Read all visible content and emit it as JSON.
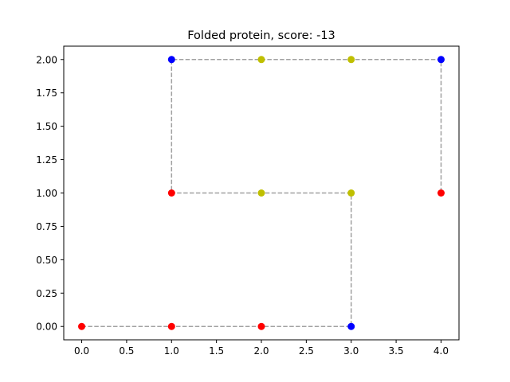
{
  "chart_data": {
    "type": "scatter",
    "title": "Folded protein, score: -13",
    "xlabel": "",
    "ylabel": "",
    "xlim": [
      -0.2,
      4.2
    ],
    "ylim": [
      -0.1,
      2.1
    ],
    "xticks": [
      0.0,
      0.5,
      1.0,
      1.5,
      2.0,
      2.5,
      3.0,
      3.5,
      4.0
    ],
    "xtick_labels": [
      "0.0",
      "0.5",
      "1.0",
      "1.5",
      "2.0",
      "2.5",
      "3.0",
      "3.5",
      "4.0"
    ],
    "yticks": [
      0.0,
      0.25,
      0.5,
      0.75,
      1.0,
      1.25,
      1.5,
      1.75,
      2.0
    ],
    "ytick_labels": [
      "0.00",
      "0.25",
      "0.50",
      "0.75",
      "1.00",
      "1.25",
      "1.50",
      "1.75",
      "2.00"
    ],
    "grid": false,
    "path": {
      "style": "dashed",
      "color": "#a0a0a0",
      "points": [
        [
          0,
          0
        ],
        [
          1,
          0
        ],
        [
          2,
          0
        ],
        [
          3,
          0
        ],
        [
          3,
          1
        ],
        [
          2,
          1
        ],
        [
          1,
          1
        ],
        [
          1,
          2
        ],
        [
          2,
          2
        ],
        [
          3,
          2
        ],
        [
          4,
          2
        ],
        [
          4,
          1
        ]
      ]
    },
    "points": [
      {
        "x": 0,
        "y": 0,
        "color": "#ff0000"
      },
      {
        "x": 1,
        "y": 0,
        "color": "#ff0000"
      },
      {
        "x": 2,
        "y": 0,
        "color": "#ff0000"
      },
      {
        "x": 3,
        "y": 0,
        "color": "#0000ff"
      },
      {
        "x": 3,
        "y": 1,
        "color": "#bfbf00"
      },
      {
        "x": 2,
        "y": 1,
        "color": "#bfbf00"
      },
      {
        "x": 1,
        "y": 1,
        "color": "#ff0000"
      },
      {
        "x": 1,
        "y": 2,
        "color": "#0000ff"
      },
      {
        "x": 2,
        "y": 2,
        "color": "#bfbf00"
      },
      {
        "x": 3,
        "y": 2,
        "color": "#bfbf00"
      },
      {
        "x": 4,
        "y": 2,
        "color": "#0000ff"
      },
      {
        "x": 4,
        "y": 1,
        "color": "#ff0000"
      }
    ]
  }
}
